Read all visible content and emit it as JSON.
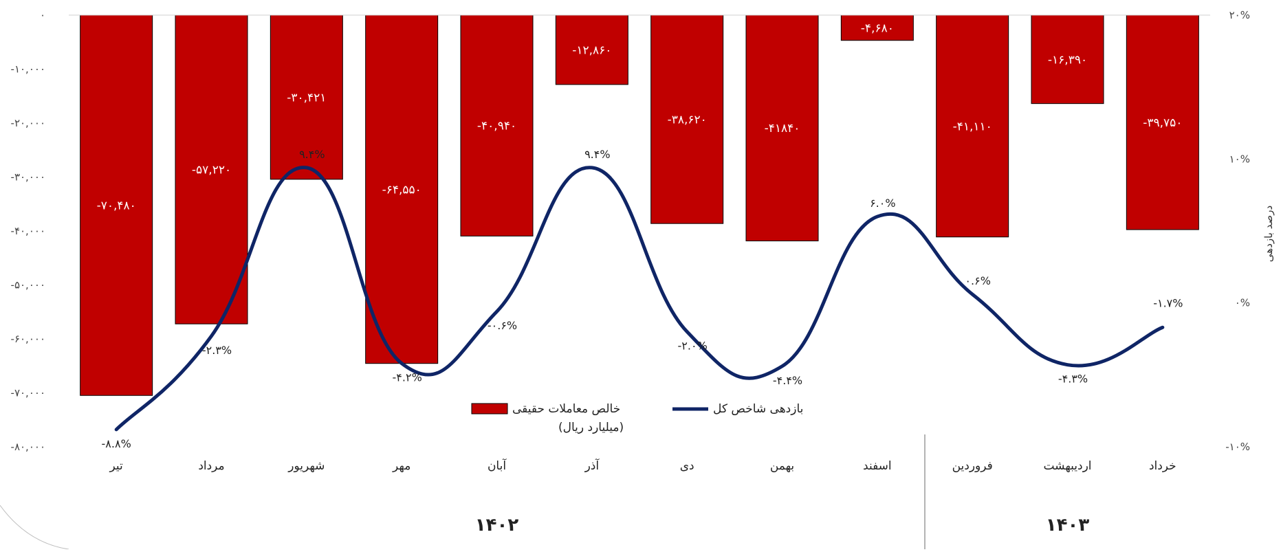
{
  "chart_data": {
    "type": "bar",
    "title": "",
    "categories": [
      "تیر",
      "مرداد",
      "شهریور",
      "مهر",
      "آبان",
      "آذر",
      "دی",
      "بهمن",
      "اسفند",
      "فروردین",
      "اردیبهشت",
      "خرداد"
    ],
    "series": [
      {
        "name": "خالص معاملات حقیقی (میلیارد ریال)",
        "name_line1": "خالص معاملات حقیقی",
        "name_line2": "(میلیارد ریال)",
        "type": "bar",
        "axis": "left",
        "color": "#c00000",
        "values": [
          -70480,
          -57220,
          -30421,
          -64550,
          -40940,
          -12860,
          -38620,
          -41840,
          -4680,
          -41110,
          -16390,
          -39750
        ],
        "labels": [
          "-۷۰,۴۸۰",
          "-۵۷,۲۲۰",
          "-۳۰,۴۲۱",
          "-۶۴,۵۵۰",
          "-۴۰,۹۴۰",
          "-۱۲,۸۶۰",
          "-۳۸,۶۲۰",
          "-۴۱۸۴۰",
          "-۴,۶۸۰",
          "-۴۱,۱۱۰",
          "-۱۶,۳۹۰",
          "-۳۹,۷۵۰"
        ]
      },
      {
        "name": "بازدهی شاخص کل",
        "type": "line",
        "axis": "right",
        "color": "#0f2566",
        "values": [
          -8.8,
          -2.3,
          9.4,
          -4.2,
          -0.6,
          9.4,
          -2.0,
          -4.4,
          6.0,
          0.6,
          -4.3,
          -1.7
        ],
        "labels": [
          "-۸.۸%",
          "-۲.۳%",
          "۹.۴%",
          "-۴.۲%",
          "-۰.۶%",
          "۹.۴%",
          "-۲.۰%",
          "-۴.۴%",
          "۶.۰%",
          "۰.۶%",
          "-۴.۳%",
          "-۱.۷%"
        ]
      }
    ],
    "groups": [
      {
        "label": "۱۴۰۲",
        "from": 0,
        "to": 8
      },
      {
        "label": "۱۴۰۳",
        "from": 9,
        "to": 11
      }
    ],
    "y_left": {
      "ylim": [
        -80000,
        0
      ],
      "ticks": [
        0,
        -10000,
        -20000,
        -30000,
        -40000,
        -50000,
        -60000,
        -70000,
        -80000
      ],
      "tick_labels": [
        "۰",
        "-۱۰,۰۰۰",
        "-۲۰,۰۰۰",
        "-۳۰,۰۰۰",
        "-۴۰,۰۰۰",
        "-۵۰,۰۰۰",
        "-۶۰,۰۰۰",
        "-۷۰,۰۰۰",
        "-۸۰,۰۰۰"
      ]
    },
    "y_right": {
      "label": "درصد بازدهی",
      "ylim": [
        -10,
        20
      ],
      "ticks": [
        20,
        10,
        0,
        -10
      ],
      "tick_labels": [
        "۲۰%",
        "۱۰%",
        "۰%",
        "-۱۰%"
      ]
    },
    "legend_position": "bottom-center",
    "grid": false
  }
}
